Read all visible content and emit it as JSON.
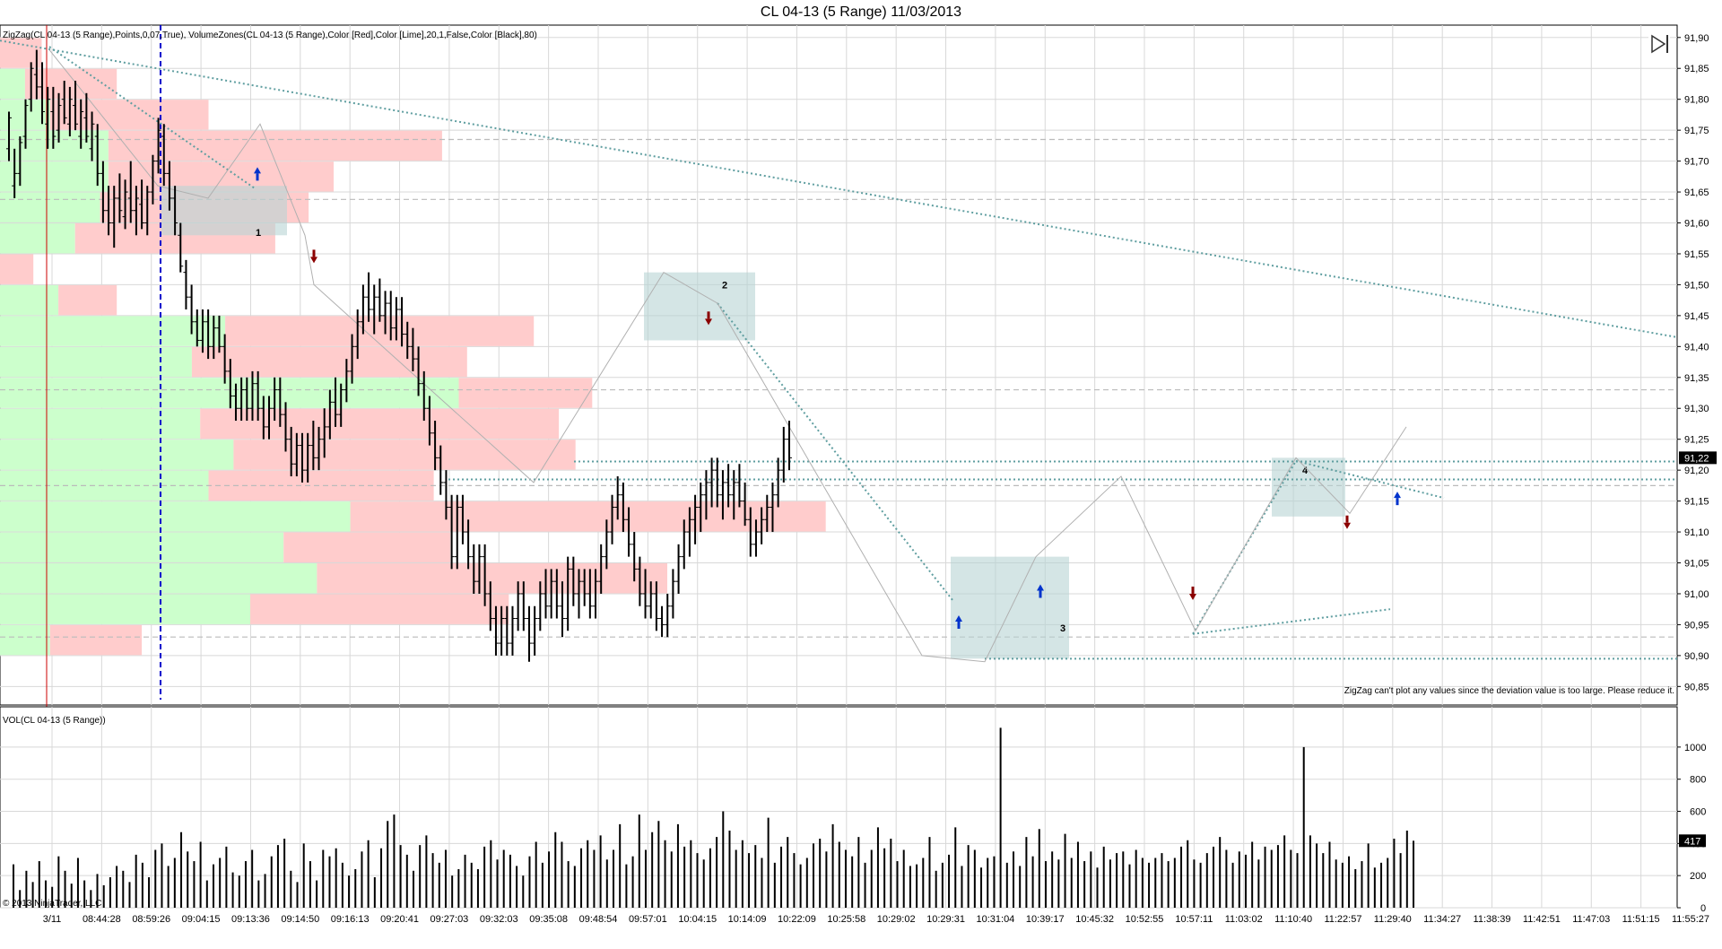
{
  "window": {
    "title": "CL 04-13 (5 Range)  11/03/2013"
  },
  "indicators": {
    "top_label": "ZigZag(CL 04-13 (5 Range),Points,0,07,True), VolumeZones(CL 04-13 (5 Range),Color [Red],Color [Lime],20,1,False,Color [Black],80)",
    "zigzag_warning": "ZigZag can't plot any values since the deviation value is too large. Please reduce it.",
    "volume_label": "VOL(CL 04-13 (5 Range))",
    "copyright": "© 2013 NinjaTrader, LLC"
  },
  "colors": {
    "up_zone": "#ccffcc",
    "down_zone": "#ffcccc",
    "trendline": "#5f9ea0",
    "box": "#b8d4d4",
    "session_line": "#0000cc",
    "date_line": "#cc0000",
    "up_arrow": "#0033cc",
    "down_arrow": "#8b0000"
  },
  "chart_data": [
    {
      "type": "bar",
      "subtype": "ohlc",
      "title": "CL 04-13 (5 Range)  11/03/2013",
      "ylim": [
        90.82,
        91.92
      ],
      "yticks": [
        "91,90",
        "91,85",
        "91,80",
        "91,75",
        "91,70",
        "91,65",
        "91,60",
        "91,55",
        "91,50",
        "91,45",
        "91,40",
        "91,35",
        "91,30",
        "91,25",
        "91,20",
        "91,15",
        "91,10",
        "91,05",
        "91,00",
        "90,95",
        "90,90",
        "90,85"
      ],
      "last_price": "91,22",
      "last_price_value": 91.22,
      "xticks": [
        "3/11",
        "08:44:28",
        "08:59:26",
        "09:04:15",
        "09:13:36",
        "09:14:50",
        "09:16:13",
        "09:20:41",
        "09:27:03",
        "09:32:03",
        "09:35:08",
        "09:48:54",
        "09:57:01",
        "10:04:15",
        "10:14:09",
        "10:22:09",
        "10:25:58",
        "10:29:02",
        "10:29:31",
        "10:31:04",
        "10:39:17",
        "10:45:32",
        "10:52:55",
        "10:57:11",
        "11:03:02",
        "11:10:40",
        "11:22:57",
        "11:29:40",
        "11:34:27",
        "11:38:39",
        "11:42:51",
        "11:47:03",
        "11:51:15",
        "11:55:27"
      ],
      "zone_labels": [
        "1",
        "2",
        "3",
        "4"
      ],
      "volume_zones": [
        {
          "low": 91.85,
          "high": 91.9,
          "up": 0,
          "down": 0.05
        },
        {
          "low": 91.8,
          "high": 91.85,
          "up": 0.03,
          "down": 0.14
        },
        {
          "low": 91.75,
          "high": 91.8,
          "up": 0.06,
          "down": 0.25
        },
        {
          "low": 91.7,
          "high": 91.75,
          "up": 0.13,
          "down": 0.53
        },
        {
          "low": 91.65,
          "high": 91.7,
          "up": 0.13,
          "down": 0.4
        },
        {
          "low": 91.6,
          "high": 91.65,
          "up": 0.12,
          "down": 0.37
        },
        {
          "low": 91.55,
          "high": 91.6,
          "up": 0.09,
          "down": 0.33
        },
        {
          "low": 91.5,
          "high": 91.55,
          "up": 0,
          "down": 0.04
        },
        {
          "low": 91.45,
          "high": 91.5,
          "up": 0.07,
          "down": 0.14
        },
        {
          "low": 91.4,
          "high": 91.45,
          "up": 0.27,
          "down": 0.64
        },
        {
          "low": 91.35,
          "high": 91.4,
          "up": 0.23,
          "down": 0.56
        },
        {
          "low": 91.3,
          "high": 91.35,
          "up": 0.55,
          "down": 0.71
        },
        {
          "low": 91.25,
          "high": 91.3,
          "up": 0.24,
          "down": 0.67
        },
        {
          "low": 91.2,
          "high": 91.25,
          "up": 0.28,
          "down": 0.69
        },
        {
          "low": 91.15,
          "high": 91.2,
          "up": 0.25,
          "down": 0.52
        },
        {
          "low": 91.1,
          "high": 91.15,
          "up": 0.42,
          "down": 0.99
        },
        {
          "low": 91.05,
          "high": 91.1,
          "up": 0.34,
          "down": 0.54
        },
        {
          "low": 91.0,
          "high": 91.05,
          "up": 0.38,
          "down": 0.8
        },
        {
          "low": 90.95,
          "high": 91.0,
          "up": 0.3,
          "down": 0.61
        },
        {
          "low": 90.9,
          "high": 90.95,
          "up": 0.06,
          "down": 0.17
        }
      ],
      "ohlc": [
        [
          91.72,
          91.78,
          91.7,
          91.77
        ],
        [
          91.66,
          91.72,
          91.64,
          91.68
        ],
        [
          91.68,
          91.74,
          91.66,
          91.73
        ],
        [
          91.74,
          91.8,
          91.72,
          91.79
        ],
        [
          91.8,
          91.86,
          91.78,
          91.85
        ],
        [
          91.84,
          91.88,
          91.8,
          91.82
        ],
        [
          91.82,
          91.86,
          91.76,
          91.78
        ],
        [
          91.76,
          91.82,
          91.72,
          91.8
        ],
        [
          91.78,
          91.82,
          91.72,
          91.74
        ],
        [
          91.75,
          91.81,
          91.73,
          91.79
        ],
        [
          91.8,
          91.83,
          91.76,
          91.77
        ],
        [
          91.76,
          91.82,
          91.74,
          91.8
        ],
        [
          91.79,
          91.83,
          91.75,
          91.76
        ],
        [
          91.74,
          91.8,
          91.72,
          91.78
        ],
        [
          91.77,
          91.81,
          91.73,
          91.74
        ],
        [
          91.72,
          91.78,
          91.7,
          91.76
        ],
        [
          91.74,
          91.76,
          91.66,
          91.68
        ],
        [
          91.68,
          91.7,
          91.6,
          91.62
        ],
        [
          91.62,
          91.66,
          91.58,
          91.6
        ],
        [
          91.6,
          91.66,
          91.56,
          91.64
        ],
        [
          91.64,
          91.68,
          91.6,
          91.62
        ],
        [
          91.61,
          91.67,
          91.59,
          91.65
        ],
        [
          91.64,
          91.7,
          91.6,
          91.62
        ],
        [
          91.62,
          91.66,
          91.58,
          91.64
        ],
        [
          91.63,
          91.67,
          91.59,
          91.6
        ],
        [
          91.6,
          91.66,
          91.58,
          91.65
        ],
        [
          91.65,
          91.71,
          91.63,
          91.7
        ],
        [
          91.7,
          91.77,
          91.68,
          91.75
        ],
        [
          91.74,
          91.76,
          91.66,
          91.68
        ],
        [
          91.68,
          91.7,
          91.62,
          91.64
        ],
        [
          91.64,
          91.66,
          91.58,
          91.6
        ],
        [
          91.58,
          91.6,
          91.52,
          91.53
        ],
        [
          91.52,
          91.54,
          91.46,
          91.48
        ],
        [
          91.48,
          91.5,
          91.42,
          91.44
        ],
        [
          91.44,
          91.46,
          91.4,
          91.41
        ],
        [
          91.41,
          91.46,
          91.39,
          91.44
        ],
        [
          91.44,
          91.46,
          91.38,
          91.4
        ],
        [
          91.4,
          91.45,
          91.38,
          91.43
        ],
        [
          91.43,
          91.45,
          91.39,
          91.4
        ],
        [
          91.4,
          91.42,
          91.34,
          91.36
        ],
        [
          91.36,
          91.38,
          91.3,
          91.32
        ],
        [
          91.32,
          91.34,
          91.28,
          91.3
        ],
        [
          91.3,
          91.35,
          91.28,
          91.33
        ],
        [
          91.33,
          91.35,
          91.28,
          91.3
        ],
        [
          91.3,
          91.36,
          91.28,
          91.34
        ],
        [
          91.34,
          91.36,
          91.28,
          91.3
        ],
        [
          91.3,
          91.32,
          91.25,
          91.27
        ],
        [
          91.27,
          91.32,
          91.25,
          91.3
        ],
        [
          91.3,
          91.35,
          91.28,
          91.33
        ],
        [
          91.33,
          91.35,
          91.27,
          91.29
        ],
        [
          91.29,
          91.31,
          91.23,
          91.25
        ],
        [
          91.25,
          91.27,
          91.19,
          91.21
        ],
        [
          91.21,
          91.26,
          91.19,
          91.24
        ],
        [
          91.24,
          91.26,
          91.18,
          91.2
        ],
        [
          91.2,
          91.26,
          91.18,
          91.24
        ],
        [
          91.24,
          91.28,
          91.2,
          91.22
        ],
        [
          91.22,
          91.27,
          91.2,
          91.25
        ],
        [
          91.25,
          91.3,
          91.22,
          91.27
        ],
        [
          91.27,
          91.33,
          91.25,
          91.31
        ],
        [
          91.31,
          91.35,
          91.27,
          91.29
        ],
        [
          91.29,
          91.34,
          91.27,
          91.33
        ],
        [
          91.33,
          91.38,
          91.31,
          91.36
        ],
        [
          91.36,
          91.42,
          91.34,
          91.4
        ],
        [
          91.4,
          91.46,
          91.38,
          91.44
        ],
        [
          91.44,
          91.5,
          91.42,
          91.48
        ],
        [
          91.48,
          91.52,
          91.44,
          91.46
        ],
        [
          91.46,
          91.5,
          91.42,
          91.48
        ],
        [
          91.48,
          91.51,
          91.44,
          91.45
        ],
        [
          91.45,
          91.49,
          91.42,
          91.47
        ],
        [
          91.47,
          91.49,
          91.41,
          91.43
        ],
        [
          91.43,
          91.48,
          91.41,
          91.46
        ],
        [
          91.46,
          91.48,
          91.4,
          91.42
        ],
        [
          91.42,
          91.44,
          91.38,
          91.4
        ],
        [
          91.4,
          91.43,
          91.36,
          91.38
        ],
        [
          91.38,
          91.4,
          91.32,
          91.34
        ],
        [
          91.34,
          91.36,
          91.28,
          91.3
        ],
        [
          91.3,
          91.32,
          91.24,
          91.26
        ],
        [
          91.26,
          91.28,
          91.2,
          91.22
        ],
        [
          91.22,
          91.24,
          91.16,
          91.18
        ],
        [
          91.18,
          91.2,
          91.12,
          91.14
        ],
        [
          91.14,
          91.16,
          91.04,
          91.06
        ],
        [
          91.06,
          91.16,
          91.04,
          91.14
        ],
        [
          91.14,
          91.16,
          91.08,
          91.1
        ],
        [
          91.1,
          91.12,
          91.04,
          91.06
        ],
        [
          91.06,
          91.08,
          91.0,
          91.02
        ],
        [
          91.02,
          91.08,
          91.0,
          91.06
        ],
        [
          91.06,
          91.08,
          90.98,
          91.0
        ],
        [
          91.0,
          91.02,
          90.94,
          90.96
        ],
        [
          90.96,
          90.98,
          90.9,
          90.92
        ],
        [
          90.92,
          90.98,
          90.9,
          90.96
        ],
        [
          90.96,
          90.98,
          90.9,
          90.92
        ],
        [
          90.92,
          90.98,
          90.9,
          90.96
        ],
        [
          90.96,
          91.02,
          90.94,
          91.0
        ],
        [
          91.0,
          91.02,
          90.94,
          90.96
        ],
        [
          90.96,
          90.98,
          90.89,
          90.92
        ],
        [
          90.92,
          90.98,
          90.9,
          90.96
        ],
        [
          90.96,
          91.02,
          90.94,
          91.0
        ],
        [
          91.0,
          91.04,
          90.96,
          90.98
        ],
        [
          90.98,
          91.04,
          90.96,
          91.02
        ],
        [
          91.02,
          91.04,
          90.96,
          90.98
        ],
        [
          90.98,
          91.02,
          90.93,
          90.96
        ],
        [
          90.96,
          91.06,
          90.94,
          91.04
        ],
        [
          91.04,
          91.06,
          90.98,
          91.0
        ],
        [
          91.0,
          91.04,
          90.96,
          91.02
        ],
        [
          91.02,
          91.04,
          90.98,
          91.0
        ],
        [
          91.0,
          91.04,
          90.96,
          90.98
        ],
        [
          90.98,
          91.04,
          90.96,
          91.02
        ],
        [
          91.02,
          91.08,
          91.0,
          91.06
        ],
        [
          91.06,
          91.12,
          91.04,
          91.1
        ],
        [
          91.1,
          91.16,
          91.08,
          91.14
        ],
        [
          91.14,
          91.19,
          91.12,
          91.16
        ],
        [
          91.16,
          91.18,
          91.1,
          91.12
        ],
        [
          91.12,
          91.14,
          91.06,
          91.08
        ],
        [
          91.08,
          91.1,
          91.02,
          91.04
        ],
        [
          91.04,
          91.06,
          90.98,
          91.0
        ],
        [
          91.0,
          91.04,
          90.96,
          90.98
        ],
        [
          90.98,
          91.02,
          90.96,
          91.0
        ],
        [
          91.0,
          91.02,
          90.94,
          90.96
        ],
        [
          90.96,
          90.98,
          90.93,
          90.95
        ],
        [
          90.95,
          91.0,
          90.93,
          90.98
        ],
        [
          90.98,
          91.04,
          90.96,
          91.02
        ],
        [
          91.02,
          91.08,
          91.0,
          91.06
        ],
        [
          91.06,
          91.12,
          91.04,
          91.1
        ],
        [
          91.1,
          91.14,
          91.06,
          91.12
        ],
        [
          91.12,
          91.16,
          91.08,
          91.14
        ],
        [
          91.14,
          91.18,
          91.1,
          91.16
        ],
        [
          91.16,
          91.2,
          91.12,
          91.18
        ],
        [
          91.18,
          91.22,
          91.14,
          91.2
        ],
        [
          91.2,
          91.22,
          91.14,
          91.16
        ],
        [
          91.16,
          91.2,
          91.12,
          91.18
        ],
        [
          91.18,
          91.21,
          91.14,
          91.16
        ],
        [
          91.16,
          91.2,
          91.12,
          91.18
        ],
        [
          91.18,
          91.21,
          91.14,
          91.15
        ],
        [
          91.15,
          91.18,
          91.11,
          91.12
        ],
        [
          91.12,
          91.14,
          91.06,
          91.08
        ],
        [
          91.08,
          91.12,
          91.06,
          91.1
        ],
        [
          91.1,
          91.14,
          91.08,
          91.12
        ],
        [
          91.12,
          91.16,
          91.1,
          91.14
        ],
        [
          91.14,
          91.18,
          91.1,
          91.16
        ],
        [
          91.16,
          91.22,
          91.14,
          91.2
        ],
        [
          91.2,
          91.27,
          91.18,
          91.25
        ],
        [
          91.25,
          91.28,
          91.2,
          91.22
        ]
      ]
    },
    {
      "type": "bar",
      "title": "VOL(CL 04-13 (5 Range))",
      "ylim": [
        0,
        1150
      ],
      "yticks": [
        "1000",
        "800",
        "600",
        "400",
        "200",
        "0"
      ],
      "last_value": "417",
      "last_value_number": 417,
      "values": [
        270,
        110,
        230,
        160,
        290,
        170,
        130,
        320,
        230,
        150,
        310,
        170,
        110,
        210,
        140,
        190,
        260,
        230,
        160,
        330,
        280,
        190,
        360,
        400,
        260,
        310,
        470,
        350,
        290,
        410,
        170,
        270,
        310,
        380,
        220,
        200,
        290,
        360,
        170,
        210,
        320,
        390,
        430,
        230,
        160,
        400,
        290,
        170,
        360,
        320,
        370,
        280,
        200,
        240,
        350,
        420,
        190,
        370,
        540,
        580,
        390,
        330,
        230,
        390,
        450,
        340,
        280,
        360,
        200,
        240,
        330,
        280,
        240,
        380,
        420,
        300,
        360,
        330,
        260,
        200,
        320,
        410,
        280,
        350,
        470,
        410,
        290,
        260,
        370,
        420,
        360,
        450,
        300,
        360,
        520,
        270,
        320,
        580,
        360,
        470,
        540,
        420,
        350,
        520,
        380,
        420,
        340,
        300,
        370,
        440,
        600,
        480,
        360,
        420,
        340,
        390,
        310,
        560,
        280,
        380,
        440,
        340,
        270,
        310,
        400,
        430,
        350,
        520,
        410,
        360,
        320,
        440,
        280,
        360,
        500,
        370,
        430,
        290,
        360,
        260,
        270,
        310,
        440,
        230,
        280,
        330,
        500,
        260,
        390,
        360,
        250,
        310,
        320,
        1120,
        280,
        350,
        260,
        440,
        320,
        490,
        290,
        350,
        300,
        460,
        310,
        410,
        290,
        350,
        250,
        380,
        300,
        340,
        350,
        270,
        360,
        310,
        280,
        310,
        340,
        290,
        310,
        380,
        420,
        300,
        280,
        340,
        380,
        440,
        360,
        280,
        350,
        330,
        410,
        300,
        380,
        360,
        390,
        450,
        360,
        340,
        1000,
        450,
        400,
        340,
        410,
        300,
        280,
        320,
        240,
        290,
        400,
        250,
        280,
        310,
        430,
        340,
        480,
        417
      ]
    }
  ]
}
